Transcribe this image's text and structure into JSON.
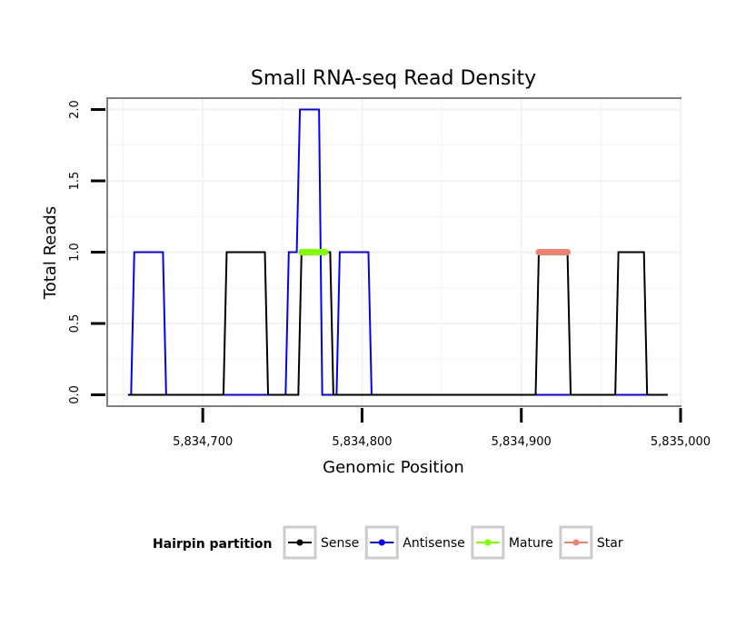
{
  "chart_data": {
    "type": "line",
    "title": "Small RNA-seq Read Density",
    "xlabel": "Genomic Position",
    "ylabel": "Total Reads",
    "xlim": [
      5834640,
      5835000
    ],
    "ylim": [
      -0.08,
      2.08
    ],
    "xticks": [
      5834700,
      5834800,
      5834900,
      5835000
    ],
    "xtick_labels": [
      "5,834,700",
      "5,834,800",
      "5,834,900",
      "5,835,000"
    ],
    "yticks": [
      0.0,
      0.5,
      1.0,
      1.5,
      2.0
    ],
    "ytick_labels": [
      "0.0",
      "0.5",
      "1.0",
      "1.5",
      "2.0"
    ],
    "grid": true,
    "series": [
      {
        "name": "Antisense",
        "color": "#0000FF",
        "x": [
          5834655,
          5834657,
          5834675,
          5834677,
          5834752,
          5834754,
          5834759,
          5834761,
          5834773,
          5834775,
          5834784,
          5834786,
          5834804,
          5834806,
          5834992
        ],
        "y": [
          0,
          1,
          1,
          0,
          0,
          1,
          1,
          2,
          2,
          0,
          0,
          1,
          1,
          0,
          0
        ]
      },
      {
        "name": "Sense",
        "color": "#000000",
        "x": [
          5834653,
          5834713,
          5834715,
          5834739,
          5834741,
          5834760,
          5834762,
          5834780,
          5834782,
          5834909,
          5834911,
          5834929,
          5834931,
          5834959,
          5834961,
          5834977,
          5834979,
          5834992
        ],
        "y": [
          0,
          0,
          1,
          1,
          0,
          0,
          1,
          1,
          0,
          0,
          1,
          1,
          0,
          0,
          1,
          1,
          0,
          0
        ]
      }
    ],
    "segments": [
      {
        "name": "Mature",
        "color": "#7FFF00",
        "x": [
          5834762,
          5834777
        ],
        "y": 1
      },
      {
        "name": "Star",
        "color": "#F08070",
        "x": [
          5834911,
          5834929
        ],
        "y": 1
      }
    ],
    "legend": {
      "title": "Hairpin partition",
      "position": "bottom",
      "entries": [
        {
          "label": "Sense",
          "color": "#000000"
        },
        {
          "label": "Antisense",
          "color": "#0000FF"
        },
        {
          "label": "Mature",
          "color": "#7FFF00"
        },
        {
          "label": "Star",
          "color": "#F08070"
        }
      ]
    }
  }
}
